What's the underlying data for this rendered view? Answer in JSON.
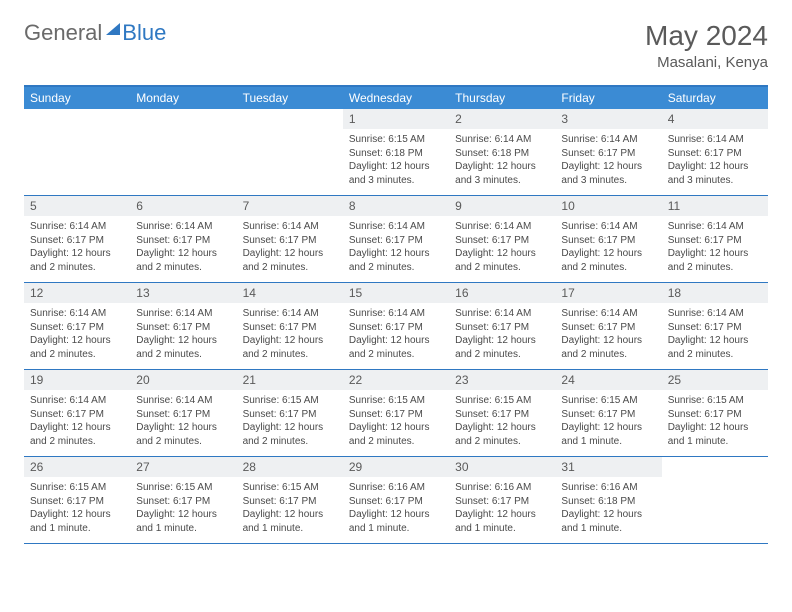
{
  "logo": {
    "part1": "General",
    "part2": "Blue"
  },
  "title": "May 2024",
  "location": "Masalani, Kenya",
  "colors": {
    "header_bg": "#3b8bd4",
    "header_text": "#ffffff",
    "border": "#2f78c2",
    "daynum_bg": "#eef0f2",
    "text": "#5a5a5a",
    "content_text": "#4a4a4a",
    "logo_gray": "#6a6a6a",
    "logo_blue": "#2f78c2",
    "background": "#ffffff"
  },
  "typography": {
    "title_fontsize": 28,
    "location_fontsize": 15,
    "weekday_fontsize": 12,
    "daynum_fontsize": 12,
    "content_fontsize": 10
  },
  "layout": {
    "columns": 7,
    "rows": 5,
    "cell_min_height": 86
  },
  "weekdays": [
    "Sunday",
    "Monday",
    "Tuesday",
    "Wednesday",
    "Thursday",
    "Friday",
    "Saturday"
  ],
  "weeks": [
    [
      {
        "blank": true
      },
      {
        "blank": true
      },
      {
        "blank": true
      },
      {
        "day": "1",
        "sunrise": "Sunrise: 6:15 AM",
        "sunset": "Sunset: 6:18 PM",
        "daylight": "Daylight: 12 hours and 3 minutes."
      },
      {
        "day": "2",
        "sunrise": "Sunrise: 6:14 AM",
        "sunset": "Sunset: 6:18 PM",
        "daylight": "Daylight: 12 hours and 3 minutes."
      },
      {
        "day": "3",
        "sunrise": "Sunrise: 6:14 AM",
        "sunset": "Sunset: 6:17 PM",
        "daylight": "Daylight: 12 hours and 3 minutes."
      },
      {
        "day": "4",
        "sunrise": "Sunrise: 6:14 AM",
        "sunset": "Sunset: 6:17 PM",
        "daylight": "Daylight: 12 hours and 3 minutes."
      }
    ],
    [
      {
        "day": "5",
        "sunrise": "Sunrise: 6:14 AM",
        "sunset": "Sunset: 6:17 PM",
        "daylight": "Daylight: 12 hours and 2 minutes."
      },
      {
        "day": "6",
        "sunrise": "Sunrise: 6:14 AM",
        "sunset": "Sunset: 6:17 PM",
        "daylight": "Daylight: 12 hours and 2 minutes."
      },
      {
        "day": "7",
        "sunrise": "Sunrise: 6:14 AM",
        "sunset": "Sunset: 6:17 PM",
        "daylight": "Daylight: 12 hours and 2 minutes."
      },
      {
        "day": "8",
        "sunrise": "Sunrise: 6:14 AM",
        "sunset": "Sunset: 6:17 PM",
        "daylight": "Daylight: 12 hours and 2 minutes."
      },
      {
        "day": "9",
        "sunrise": "Sunrise: 6:14 AM",
        "sunset": "Sunset: 6:17 PM",
        "daylight": "Daylight: 12 hours and 2 minutes."
      },
      {
        "day": "10",
        "sunrise": "Sunrise: 6:14 AM",
        "sunset": "Sunset: 6:17 PM",
        "daylight": "Daylight: 12 hours and 2 minutes."
      },
      {
        "day": "11",
        "sunrise": "Sunrise: 6:14 AM",
        "sunset": "Sunset: 6:17 PM",
        "daylight": "Daylight: 12 hours and 2 minutes."
      }
    ],
    [
      {
        "day": "12",
        "sunrise": "Sunrise: 6:14 AM",
        "sunset": "Sunset: 6:17 PM",
        "daylight": "Daylight: 12 hours and 2 minutes."
      },
      {
        "day": "13",
        "sunrise": "Sunrise: 6:14 AM",
        "sunset": "Sunset: 6:17 PM",
        "daylight": "Daylight: 12 hours and 2 minutes."
      },
      {
        "day": "14",
        "sunrise": "Sunrise: 6:14 AM",
        "sunset": "Sunset: 6:17 PM",
        "daylight": "Daylight: 12 hours and 2 minutes."
      },
      {
        "day": "15",
        "sunrise": "Sunrise: 6:14 AM",
        "sunset": "Sunset: 6:17 PM",
        "daylight": "Daylight: 12 hours and 2 minutes."
      },
      {
        "day": "16",
        "sunrise": "Sunrise: 6:14 AM",
        "sunset": "Sunset: 6:17 PM",
        "daylight": "Daylight: 12 hours and 2 minutes."
      },
      {
        "day": "17",
        "sunrise": "Sunrise: 6:14 AM",
        "sunset": "Sunset: 6:17 PM",
        "daylight": "Daylight: 12 hours and 2 minutes."
      },
      {
        "day": "18",
        "sunrise": "Sunrise: 6:14 AM",
        "sunset": "Sunset: 6:17 PM",
        "daylight": "Daylight: 12 hours and 2 minutes."
      }
    ],
    [
      {
        "day": "19",
        "sunrise": "Sunrise: 6:14 AM",
        "sunset": "Sunset: 6:17 PM",
        "daylight": "Daylight: 12 hours and 2 minutes."
      },
      {
        "day": "20",
        "sunrise": "Sunrise: 6:14 AM",
        "sunset": "Sunset: 6:17 PM",
        "daylight": "Daylight: 12 hours and 2 minutes."
      },
      {
        "day": "21",
        "sunrise": "Sunrise: 6:15 AM",
        "sunset": "Sunset: 6:17 PM",
        "daylight": "Daylight: 12 hours and 2 minutes."
      },
      {
        "day": "22",
        "sunrise": "Sunrise: 6:15 AM",
        "sunset": "Sunset: 6:17 PM",
        "daylight": "Daylight: 12 hours and 2 minutes."
      },
      {
        "day": "23",
        "sunrise": "Sunrise: 6:15 AM",
        "sunset": "Sunset: 6:17 PM",
        "daylight": "Daylight: 12 hours and 2 minutes."
      },
      {
        "day": "24",
        "sunrise": "Sunrise: 6:15 AM",
        "sunset": "Sunset: 6:17 PM",
        "daylight": "Daylight: 12 hours and 1 minute."
      },
      {
        "day": "25",
        "sunrise": "Sunrise: 6:15 AM",
        "sunset": "Sunset: 6:17 PM",
        "daylight": "Daylight: 12 hours and 1 minute."
      }
    ],
    [
      {
        "day": "26",
        "sunrise": "Sunrise: 6:15 AM",
        "sunset": "Sunset: 6:17 PM",
        "daylight": "Daylight: 12 hours and 1 minute."
      },
      {
        "day": "27",
        "sunrise": "Sunrise: 6:15 AM",
        "sunset": "Sunset: 6:17 PM",
        "daylight": "Daylight: 12 hours and 1 minute."
      },
      {
        "day": "28",
        "sunrise": "Sunrise: 6:15 AM",
        "sunset": "Sunset: 6:17 PM",
        "daylight": "Daylight: 12 hours and 1 minute."
      },
      {
        "day": "29",
        "sunrise": "Sunrise: 6:16 AM",
        "sunset": "Sunset: 6:17 PM",
        "daylight": "Daylight: 12 hours and 1 minute."
      },
      {
        "day": "30",
        "sunrise": "Sunrise: 6:16 AM",
        "sunset": "Sunset: 6:17 PM",
        "daylight": "Daylight: 12 hours and 1 minute."
      },
      {
        "day": "31",
        "sunrise": "Sunrise: 6:16 AM",
        "sunset": "Sunset: 6:18 PM",
        "daylight": "Daylight: 12 hours and 1 minute."
      },
      {
        "blank": true
      }
    ]
  ]
}
